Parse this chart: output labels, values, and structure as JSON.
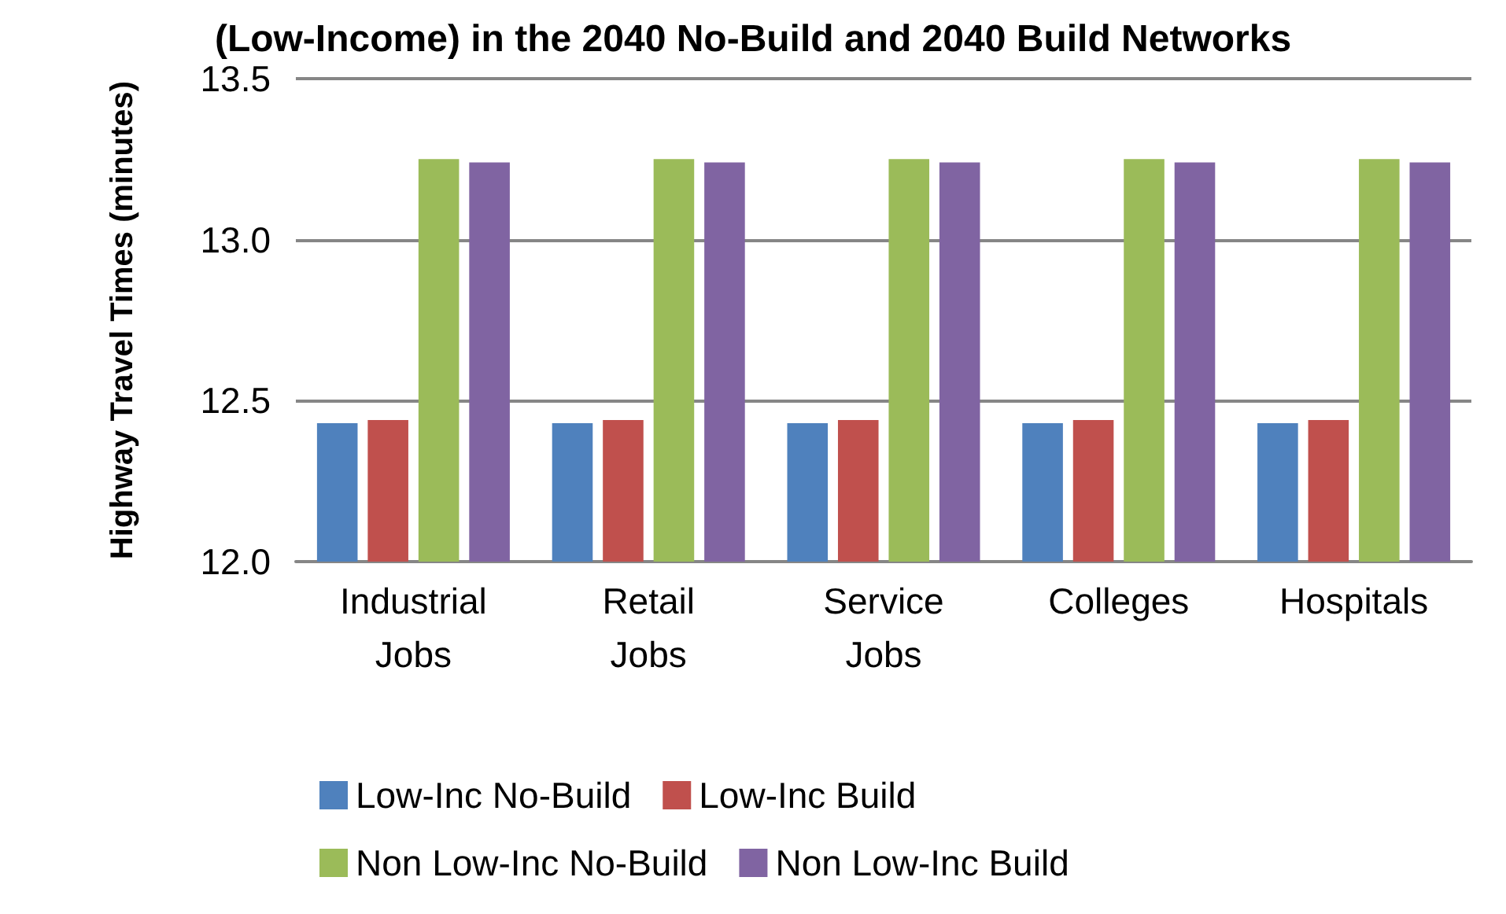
{
  "chart_data": {
    "type": "bar",
    "title": "(Low-Income) in the 2040 No-Build and 2040 Build Networks",
    "ylabel": "Highway Travel Times (minutes)",
    "categories": [
      "Industrial Jobs",
      "Retail Jobs",
      "Service Jobs",
      "Colleges",
      "Hospitals"
    ],
    "series": [
      {
        "name": "Low-Inc No-Build",
        "color": "#4f81bd",
        "values": [
          12.43,
          12.43,
          12.43,
          12.43,
          12.43
        ]
      },
      {
        "name": "Low-Inc Build",
        "color": "#c0504d",
        "values": [
          12.44,
          12.44,
          12.44,
          12.44,
          12.44
        ]
      },
      {
        "name": "Non Low-Inc No-Build",
        "color": "#9bbb59",
        "values": [
          13.25,
          13.25,
          13.25,
          13.25,
          13.25
        ]
      },
      {
        "name": "Non Low-Inc Build",
        "color": "#8064a2",
        "values": [
          13.24,
          13.24,
          13.24,
          13.24,
          13.24
        ]
      }
    ],
    "ylim": [
      12.0,
      13.5
    ],
    "yticks": [
      {
        "value": 12.0,
        "label": "12.0"
      },
      {
        "value": 12.5,
        "label": "12.5"
      },
      {
        "value": 13.0,
        "label": "13.0"
      },
      {
        "value": 13.5,
        "label": "13.5"
      }
    ],
    "grid": "y",
    "legend": "bottom"
  }
}
